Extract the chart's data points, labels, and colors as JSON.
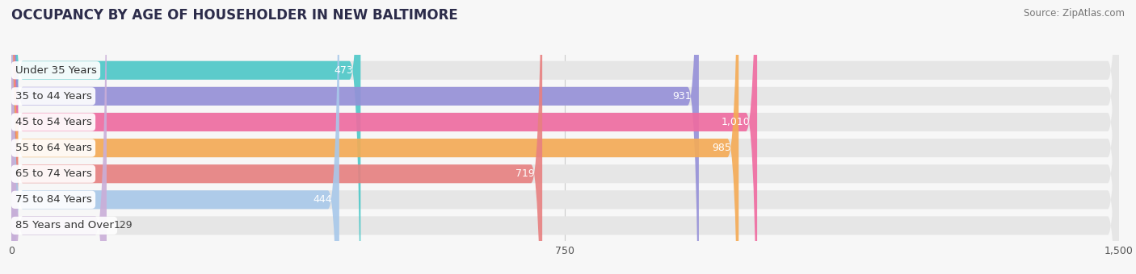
{
  "title": "OCCUPANCY BY AGE OF HOUSEHOLDER IN NEW BALTIMORE",
  "source": "Source: ZipAtlas.com",
  "categories": [
    "Under 35 Years",
    "35 to 44 Years",
    "45 to 54 Years",
    "55 to 64 Years",
    "65 to 74 Years",
    "75 to 84 Years",
    "85 Years and Over"
  ],
  "values": [
    473,
    931,
    1010,
    985,
    719,
    444,
    129
  ],
  "colors": [
    "#4dc8c8",
    "#9590d8",
    "#f06ba0",
    "#f5ab55",
    "#e88080",
    "#a8c8ea",
    "#caaed8"
  ],
  "xlim": [
    0,
    1500
  ],
  "xticks": [
    0,
    750,
    1500
  ],
  "bar_height": 0.72,
  "background_color": "#f7f7f7",
  "bar_bg_color": "#e6e6e6",
  "title_fontsize": 12,
  "label_fontsize": 9.5,
  "value_fontsize": 9.0,
  "value_threshold": 200
}
